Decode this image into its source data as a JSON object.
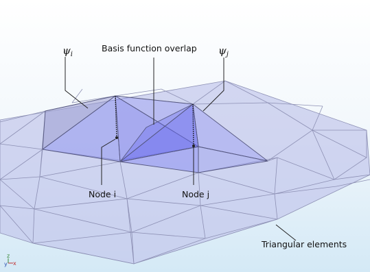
{
  "labels": {
    "psi_i": "ψ",
    "psi_i_sub": "i",
    "psi_j": "ψ",
    "psi_j_sub": "j",
    "overlap": "Basis function overlap",
    "node_i": "Node i",
    "node_j": "Node j",
    "elements": "Triangular elements"
  },
  "triad": {
    "x": "x",
    "y": "y",
    "z": "z"
  },
  "colors": {
    "background_top": "#ffffff",
    "background_bottom": "#d7ebf7",
    "mesh_fill": "#c4c7ec",
    "mesh_edge": "#8c8fb3",
    "pyramid_fill": "#7a7df0",
    "pyramid_edge": "#55577f",
    "leader": "#222222"
  }
}
